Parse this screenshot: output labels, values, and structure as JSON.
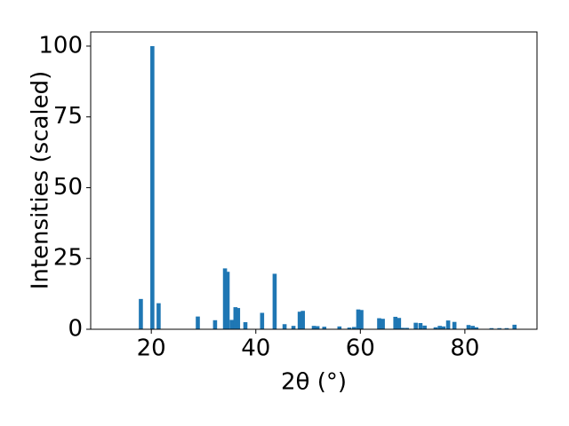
{
  "chart_data": {
    "type": "bar",
    "xlabel": "2θ (°)",
    "ylabel": "Intensities (scaled)",
    "color": "#1f77b4",
    "x": [
      18.0,
      20.2,
      21.4,
      28.9,
      32.2,
      34.1,
      34.6,
      35.4,
      36.1,
      36.6,
      38.0,
      41.2,
      43.6,
      45.5,
      47.2,
      48.4,
      49.0,
      51.1,
      51.8,
      53.1,
      56.0,
      57.9,
      58.8,
      59.6,
      60.2,
      63.6,
      64.3,
      66.7,
      67.4,
      68.1,
      68.9,
      70.6,
      71.5,
      72.3,
      74.4,
      75.2,
      75.9,
      76.8,
      78.0,
      80.7,
      81.5,
      82.2,
      85.1,
      86.6,
      88.0,
      89.5
    ],
    "values": [
      10.7,
      100,
      9.2,
      4.5,
      3.2,
      21.5,
      20.3,
      3.3,
      7.8,
      7.5,
      2.5,
      5.8,
      19.6,
      1.8,
      1.2,
      6.2,
      6.5,
      1.2,
      1.1,
      0.9,
      1.0,
      0.6,
      0.8,
      7.0,
      6.8,
      3.9,
      3.7,
      4.4,
      4.0,
      0.5,
      0.5,
      2.3,
      2.2,
      1.3,
      0.7,
      1.2,
      1.0,
      3.1,
      2.6,
      1.5,
      1.2,
      0.7,
      0.4,
      0.4,
      0.4,
      1.6
    ],
    "xlim": [
      8.4,
      93.8
    ],
    "ylim": [
      0,
      105
    ],
    "xticks": [
      20,
      40,
      60,
      80
    ],
    "yticks": [
      0,
      25,
      50,
      75,
      100
    ]
  }
}
